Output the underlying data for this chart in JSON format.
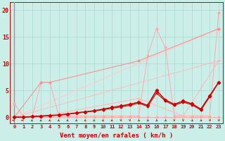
{
  "bg_color": "#cceee8",
  "grid_color": "#aad8d2",
  "xlabel": "Vent moyen/en rafales ( km/h )",
  "ylim": [
    -1.2,
    21.5
  ],
  "xlim": [
    -0.5,
    23.5
  ],
  "yticks": [
    0,
    5,
    10,
    15,
    20
  ],
  "xticks": [
    0,
    1,
    2,
    3,
    4,
    5,
    6,
    7,
    8,
    9,
    10,
    11,
    12,
    13,
    14,
    15,
    16,
    17,
    18,
    19,
    20,
    21,
    22,
    23
  ],
  "series": [
    {
      "x": [
        0,
        1,
        2,
        3,
        4,
        5,
        6,
        7,
        8,
        9,
        10,
        11,
        12,
        13,
        14,
        15,
        16,
        17,
        18,
        19,
        20,
        21,
        22,
        23
      ],
      "y": [
        0,
        0,
        0,
        0,
        0,
        0,
        0,
        0,
        0,
        0,
        0,
        0,
        0,
        0,
        0,
        0,
        0,
        0,
        0,
        0,
        0,
        0,
        0,
        0
      ],
      "color": "#ffaaaa",
      "lw": 0.7,
      "marker": "o",
      "ms": 1.8,
      "zorder": 3
    },
    {
      "comment": "light pink jagged line: peak at x=0 (~2.5), x=3-4 (~6.5), x=15 (~11.5), x=16 (~16.5), x=17 (~13), x=23 (~19.5)",
      "x": [
        0,
        1,
        2,
        3,
        4,
        5,
        6,
        7,
        8,
        9,
        10,
        11,
        12,
        13,
        14,
        15,
        16,
        17,
        18,
        19,
        20,
        21,
        22,
        23
      ],
      "y": [
        2.5,
        0.1,
        0.1,
        6.5,
        6.5,
        0.2,
        0.2,
        0.2,
        0.2,
        0.2,
        0.2,
        0.2,
        0.2,
        0.2,
        0.2,
        11.5,
        16.5,
        13.0,
        0.2,
        0.2,
        0.2,
        0.2,
        0.2,
        19.5
      ],
      "color": "#ffaaaa",
      "lw": 0.7,
      "marker": "o",
      "ms": 1.8,
      "zorder": 3
    },
    {
      "x": [
        0,
        3,
        4,
        14,
        23
      ],
      "y": [
        0,
        6.5,
        6.5,
        10.5,
        16.5
      ],
      "color": "#ff9090",
      "lw": 0.8,
      "marker": "o",
      "ms": 1.8,
      "zorder": 4
    },
    {
      "x": [
        0,
        4,
        14,
        19,
        23
      ],
      "y": [
        0,
        0.4,
        3.5,
        0.2,
        10.5
      ],
      "color": "#ffbbbb",
      "lw": 0.8,
      "marker": "o",
      "ms": 1.8,
      "zorder": 4
    },
    {
      "x": [
        0,
        1,
        2,
        3,
        4,
        5,
        6,
        7,
        8,
        9,
        10,
        11,
        12,
        13,
        14,
        15,
        16,
        17,
        18,
        19,
        20,
        21,
        22,
        23
      ],
      "y": [
        0,
        0,
        0.1,
        0.2,
        0.3,
        0.4,
        0.6,
        0.8,
        1.0,
        1.2,
        1.5,
        1.8,
        2.1,
        2.4,
        2.8,
        2.2,
        5.0,
        3.2,
        2.4,
        3.0,
        2.5,
        1.5,
        4.0,
        6.5
      ],
      "color": "#cc0000",
      "lw": 1.1,
      "marker": "D",
      "ms": 2.2,
      "zorder": 6
    },
    {
      "x": [
        0,
        1,
        2,
        3,
        4,
        5,
        6,
        7,
        8,
        9,
        10,
        11,
        12,
        13,
        14,
        15,
        16,
        17,
        18,
        19,
        20,
        21,
        22,
        23
      ],
      "y": [
        0,
        0,
        0.1,
        0.2,
        0.3,
        0.35,
        0.55,
        0.75,
        0.95,
        1.15,
        1.4,
        1.65,
        1.9,
        2.2,
        2.6,
        2.0,
        4.5,
        3.0,
        2.2,
        2.8,
        2.3,
        1.3,
        3.8,
        6.5
      ],
      "color": "#dd1111",
      "lw": 0.9,
      "marker": "o",
      "ms": 1.8,
      "zorder": 5
    },
    {
      "x": [
        0,
        23
      ],
      "y": [
        0,
        16.5
      ],
      "color": "#ffcccc",
      "lw": 0.8,
      "marker": "o",
      "ms": 1.8,
      "zorder": 2
    },
    {
      "x": [
        0,
        23
      ],
      "y": [
        0,
        10.5
      ],
      "color": "#ffbbbb",
      "lw": 0.7,
      "marker": "o",
      "ms": 1.5,
      "zorder": 2
    }
  ],
  "arrow_angles_deg": [
    180,
    180,
    225,
    225,
    225,
    225,
    225,
    225,
    225,
    225,
    225,
    225,
    270,
    270,
    315,
    315,
    315,
    315,
    270,
    270,
    315,
    315,
    45,
    45
  ],
  "arrow_color": "#cc0000",
  "axis_color": "#cc0000",
  "tick_label_color": "#cc0000",
  "xlabel_color": "#cc0000",
  "xlabel_fontsize": 6.5,
  "tick_fontsize": 5.0,
  "ytick_fontsize": 6.0
}
